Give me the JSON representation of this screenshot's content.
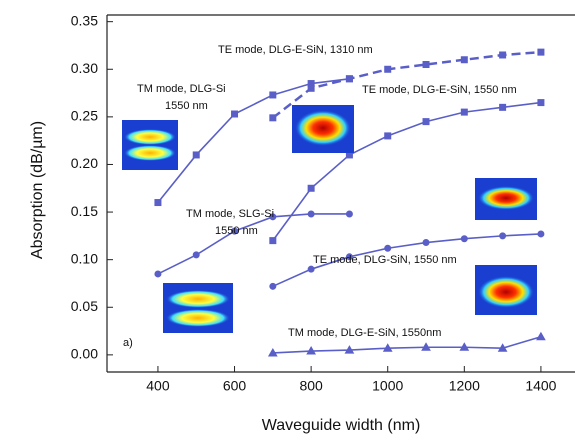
{
  "chart_data": {
    "type": "line",
    "xlabel": "Waveguide width (nm)",
    "ylabel": "Absorption (dB/µm)",
    "xlim": [
      267,
      1489
    ],
    "ylim": [
      -0.018,
      0.357
    ],
    "xticks": [
      400,
      600,
      800,
      1000,
      1200,
      1400
    ],
    "yticks": [
      {
        "value": 0,
        "label": "0.00"
      },
      {
        "value": 0.05,
        "label": "0.05"
      },
      {
        "value": 0.1,
        "label": "0.10"
      },
      {
        "value": 0.15,
        "label": "0.15"
      },
      {
        "value": 0.2,
        "label": "0.20"
      },
      {
        "value": 0.25,
        "label": "0.25"
      },
      {
        "value": 0.3,
        "label": "0.30"
      },
      {
        "value": 0.35,
        "label": "0.35"
      }
    ],
    "grid": false,
    "annotations": [
      "TE mode, DLG-E-SiN, 1310 nm",
      "TM mode, DLG-Si",
      "1550 nm",
      "TE mode, DLG-E-SiN, 1550 nm",
      "TM mode, SLG-Si",
      "1550 nm",
      "TE mode, DLG-SiN, 1550 nm",
      "TM mode, DLG-E-SiN, 1550nm",
      "a)"
    ],
    "series": [
      {
        "color": "#5a5fc8",
        "linestyle": "solid",
        "marker": "square",
        "x": [
          400,
          500,
          600,
          700,
          800,
          900
        ],
        "values": [
          0.16,
          0.21,
          0.253,
          0.273,
          0.285,
          0.29
        ]
      },
      {
        "color": "#5a5fc8",
        "linestyle": "dashed",
        "marker": "square",
        "x": [
          700,
          800,
          900,
          1000,
          1100,
          1200,
          1300,
          1400
        ],
        "values": [
          0.249,
          0.28,
          0.29,
          0.3,
          0.305,
          0.31,
          0.315,
          0.318
        ]
      },
      {
        "color": "#5a5fc8",
        "linestyle": "solid",
        "marker": "square",
        "x": [
          700,
          800,
          900,
          1000,
          1100,
          1200,
          1300,
          1400
        ],
        "values": [
          0.12,
          0.175,
          0.21,
          0.23,
          0.245,
          0.255,
          0.26,
          0.265
        ]
      },
      {
        "color": "#5a5fc8",
        "linestyle": "solid",
        "marker": "circle",
        "x": [
          400,
          500,
          600,
          700,
          800,
          900
        ],
        "values": [
          0.085,
          0.105,
          0.13,
          0.145,
          0.148,
          0.148
        ]
      },
      {
        "color": "#5a5fc8",
        "linestyle": "solid",
        "marker": "circle",
        "x": [
          700,
          800,
          900,
          1000,
          1100,
          1200,
          1300,
          1400
        ],
        "values": [
          0.072,
          0.09,
          0.103,
          0.112,
          0.118,
          0.122,
          0.125,
          0.127
        ]
      },
      {
        "color": "#5a5fc8",
        "linestyle": "solid",
        "marker": "triangle",
        "x": [
          700,
          800,
          900,
          1000,
          1100,
          1200,
          1300,
          1400
        ],
        "values": [
          0.002,
          0.004,
          0.005,
          0.007,
          0.008,
          0.008,
          0.007,
          0.019
        ]
      }
    ]
  }
}
